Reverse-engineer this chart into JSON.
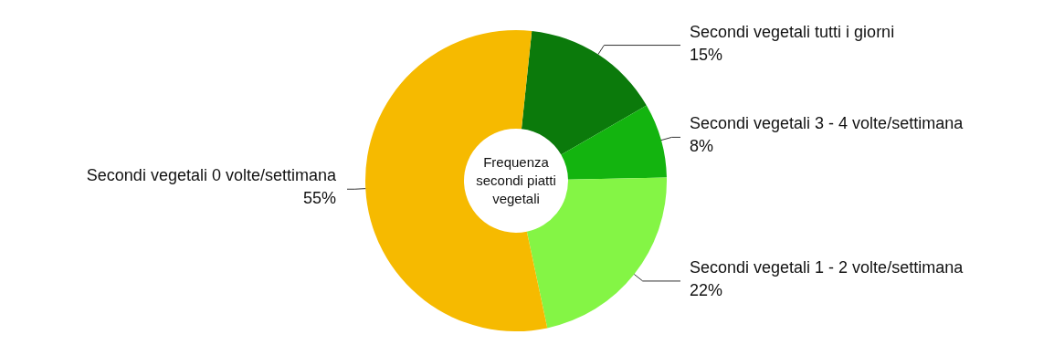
{
  "chart_data": {
    "type": "donut",
    "title": "Frequenza secondi piatti vegetali",
    "categories": [
      "Secondi vegetali tutti i giorni",
      "Secondi vegetali 3 - 4 volte/settimana",
      "Secondi vegetali 1 - 2 volte/settimana",
      "Secondi vegetali 0 volte/settimana"
    ],
    "values": [
      15,
      8,
      22,
      55
    ],
    "colors": [
      "#0b7a0b",
      "#13b40f",
      "#84f545",
      "#f6ba00"
    ],
    "value_labels": [
      "15%",
      "8%",
      "22%",
      "55%"
    ]
  }
}
